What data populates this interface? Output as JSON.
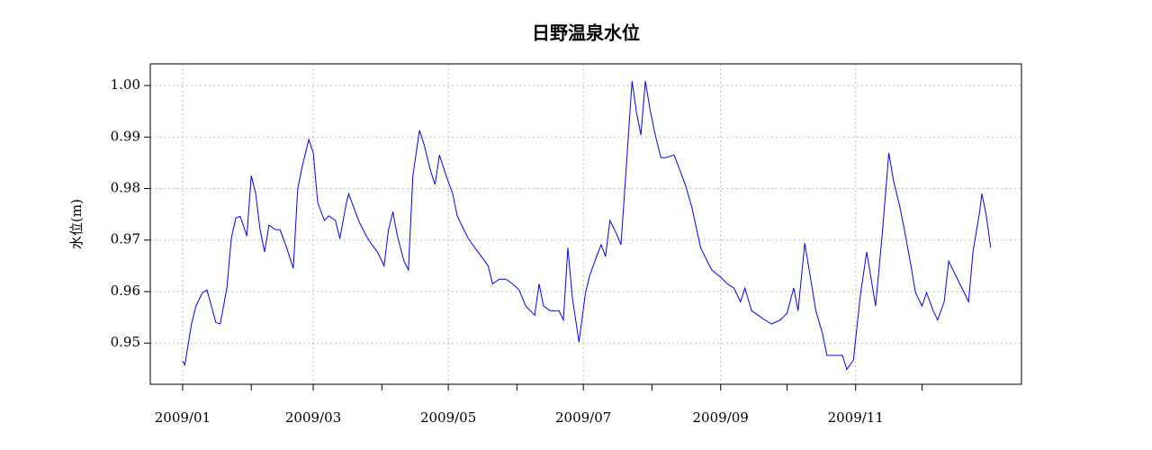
{
  "chart_data": {
    "type": "line",
    "title": "日野温泉水位",
    "y_label": "水位(m)",
    "color": "#0000ff",
    "grid": true,
    "x": [
      0,
      1,
      4,
      6,
      9,
      11,
      13,
      15,
      17,
      20,
      22,
      24,
      26,
      29,
      31,
      33,
      35,
      37,
      39,
      42,
      44,
      47,
      50,
      52,
      54,
      57,
      59,
      61,
      64,
      66,
      69,
      71,
      74,
      75,
      78,
      80,
      83,
      85,
      88,
      91,
      93,
      95,
      97,
      100,
      102,
      104,
      107,
      109,
      112,
      114,
      116,
      119,
      122,
      124,
      126,
      129,
      132,
      135,
      138,
      140,
      143,
      146,
      149,
      152,
      155,
      159,
      161,
      163,
      166,
      170,
      172,
      174,
      176,
      179,
      182,
      184,
      187,
      189,
      191,
      193,
      196,
      198,
      200,
      203,
      205,
      207,
      209,
      211,
      213,
      216,
      218,
      222,
      224,
      227,
      230,
      234,
      237,
      239,
      243,
      246,
      249,
      252,
      254,
      257,
      260,
      263,
      266,
      270,
      273,
      276,
      278,
      281,
      283,
      286,
      289,
      291,
      295,
      298,
      300,
      303,
      306,
      309,
      311,
      313,
      316,
      319,
      321,
      324,
      326,
      329,
      331,
      334,
      336,
      339,
      341,
      344,
      346,
      349,
      352,
      355,
      357,
      360,
      361,
      363,
      365
    ],
    "values": [
      0.9465,
      0.9458,
      0.9537,
      0.9572,
      0.9598,
      0.9603,
      0.9572,
      0.954,
      0.9537,
      0.9607,
      0.9703,
      0.9743,
      0.9746,
      0.9708,
      0.9825,
      0.979,
      0.972,
      0.9677,
      0.9729,
      0.972,
      0.972,
      0.9685,
      0.9645,
      0.9799,
      0.9843,
      0.9895,
      0.9869,
      0.9773,
      0.9738,
      0.9747,
      0.9738,
      0.9703,
      0.9773,
      0.979,
      0.9755,
      0.9733,
      0.9708,
      0.9694,
      0.9677,
      0.965,
      0.972,
      0.9755,
      0.9708,
      0.9659,
      0.9642,
      0.9825,
      0.9913,
      0.9886,
      0.9834,
      0.9808,
      0.9865,
      0.9825,
      0.979,
      0.9747,
      0.9729,
      0.9703,
      0.9685,
      0.9668,
      0.965,
      0.9615,
      0.9624,
      0.9624,
      0.9615,
      0.9603,
      0.9572,
      0.9554,
      0.9615,
      0.9572,
      0.9563,
      0.9563,
      0.9545,
      0.9685,
      0.9589,
      0.9502,
      0.9598,
      0.9633,
      0.9668,
      0.9691,
      0.9668,
      0.9738,
      0.9712,
      0.9691,
      0.9816,
      1.0009,
      0.9948,
      0.9904,
      1.0009,
      0.9956,
      0.9913,
      0.986,
      0.986,
      0.9865,
      0.9843,
      0.9808,
      0.9764,
      0.9685,
      0.9659,
      0.9642,
      0.9628,
      0.9615,
      0.9607,
      0.958,
      0.9607,
      0.9563,
      0.9554,
      0.9545,
      0.9537,
      0.9545,
      0.9558,
      0.9607,
      0.9563,
      0.9694,
      0.9642,
      0.9563,
      0.9519,
      0.9476,
      0.9476,
      0.9476,
      0.9449,
      0.9467,
      0.9589,
      0.9677,
      0.9624,
      0.9572,
      0.9712,
      0.9869,
      0.9817,
      0.9764,
      0.972,
      0.965,
      0.9598,
      0.9572,
      0.9598,
      0.9563,
      0.9545,
      0.958,
      0.9659,
      0.9633,
      0.9607,
      0.958,
      0.9677,
      0.9755,
      0.979,
      0.9747,
      0.9685
    ],
    "xlim": [
      -14.6,
      378.9
    ],
    "xticks": [
      {
        "value": 0,
        "label": "2009/01"
      },
      {
        "value": 31,
        "label": null
      },
      {
        "value": 59,
        "label": "2009/03"
      },
      {
        "value": 90,
        "label": null
      },
      {
        "value": 120,
        "label": "2009/05"
      },
      {
        "value": 151,
        "label": null
      },
      {
        "value": 181,
        "label": "2009/07"
      },
      {
        "value": 212,
        "label": null
      },
      {
        "value": 243,
        "label": "2009/09"
      },
      {
        "value": 273,
        "label": null
      },
      {
        "value": 304,
        "label": "2009/11"
      },
      {
        "value": 334,
        "label": null
      }
    ],
    "ylim": [
      0.942,
      1.0042
    ],
    "yticks": [
      0.95,
      0.96,
      0.97,
      0.98,
      0.99,
      {
        "value": 1,
        "label": "1.00"
      }
    ]
  }
}
